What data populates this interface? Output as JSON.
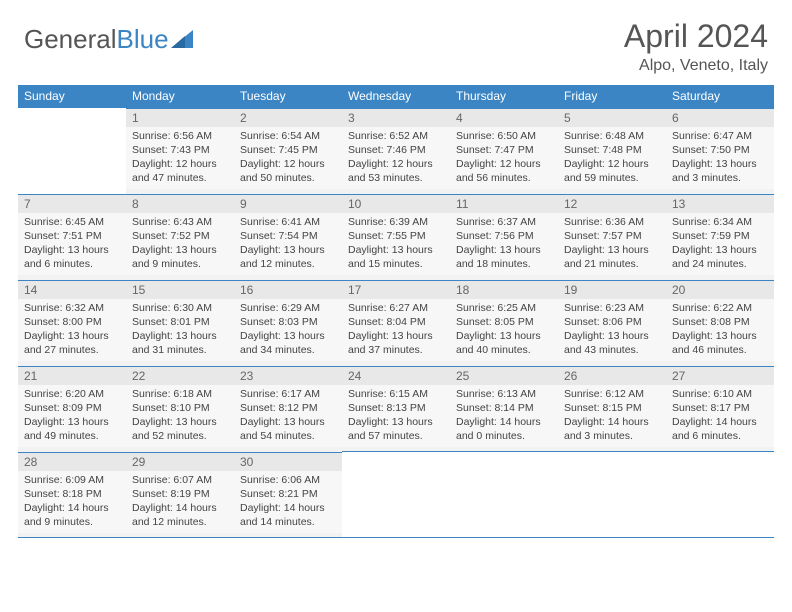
{
  "logo": {
    "text_gray": "General",
    "text_blue": "Blue"
  },
  "title": "April 2024",
  "location": "Alpo, Veneto, Italy",
  "day_headers": [
    "Sunday",
    "Monday",
    "Tuesday",
    "Wednesday",
    "Thursday",
    "Friday",
    "Saturday"
  ],
  "colors": {
    "header_bg": "#3b85c4",
    "header_text": "#ffffff",
    "cell_bg": "#f7f7f7",
    "daynum_bg": "#e8e8e8",
    "text": "#444444",
    "title_text": "#555555"
  },
  "weeks": [
    [
      null,
      {
        "n": "1",
        "sr": "Sunrise: 6:56 AM",
        "ss": "Sunset: 7:43 PM",
        "d1": "Daylight: 12 hours",
        "d2": "and 47 minutes."
      },
      {
        "n": "2",
        "sr": "Sunrise: 6:54 AM",
        "ss": "Sunset: 7:45 PM",
        "d1": "Daylight: 12 hours",
        "d2": "and 50 minutes."
      },
      {
        "n": "3",
        "sr": "Sunrise: 6:52 AM",
        "ss": "Sunset: 7:46 PM",
        "d1": "Daylight: 12 hours",
        "d2": "and 53 minutes."
      },
      {
        "n": "4",
        "sr": "Sunrise: 6:50 AM",
        "ss": "Sunset: 7:47 PM",
        "d1": "Daylight: 12 hours",
        "d2": "and 56 minutes."
      },
      {
        "n": "5",
        "sr": "Sunrise: 6:48 AM",
        "ss": "Sunset: 7:48 PM",
        "d1": "Daylight: 12 hours",
        "d2": "and 59 minutes."
      },
      {
        "n": "6",
        "sr": "Sunrise: 6:47 AM",
        "ss": "Sunset: 7:50 PM",
        "d1": "Daylight: 13 hours",
        "d2": "and 3 minutes."
      }
    ],
    [
      {
        "n": "7",
        "sr": "Sunrise: 6:45 AM",
        "ss": "Sunset: 7:51 PM",
        "d1": "Daylight: 13 hours",
        "d2": "and 6 minutes."
      },
      {
        "n": "8",
        "sr": "Sunrise: 6:43 AM",
        "ss": "Sunset: 7:52 PM",
        "d1": "Daylight: 13 hours",
        "d2": "and 9 minutes."
      },
      {
        "n": "9",
        "sr": "Sunrise: 6:41 AM",
        "ss": "Sunset: 7:54 PM",
        "d1": "Daylight: 13 hours",
        "d2": "and 12 minutes."
      },
      {
        "n": "10",
        "sr": "Sunrise: 6:39 AM",
        "ss": "Sunset: 7:55 PM",
        "d1": "Daylight: 13 hours",
        "d2": "and 15 minutes."
      },
      {
        "n": "11",
        "sr": "Sunrise: 6:37 AM",
        "ss": "Sunset: 7:56 PM",
        "d1": "Daylight: 13 hours",
        "d2": "and 18 minutes."
      },
      {
        "n": "12",
        "sr": "Sunrise: 6:36 AM",
        "ss": "Sunset: 7:57 PM",
        "d1": "Daylight: 13 hours",
        "d2": "and 21 minutes."
      },
      {
        "n": "13",
        "sr": "Sunrise: 6:34 AM",
        "ss": "Sunset: 7:59 PM",
        "d1": "Daylight: 13 hours",
        "d2": "and 24 minutes."
      }
    ],
    [
      {
        "n": "14",
        "sr": "Sunrise: 6:32 AM",
        "ss": "Sunset: 8:00 PM",
        "d1": "Daylight: 13 hours",
        "d2": "and 27 minutes."
      },
      {
        "n": "15",
        "sr": "Sunrise: 6:30 AM",
        "ss": "Sunset: 8:01 PM",
        "d1": "Daylight: 13 hours",
        "d2": "and 31 minutes."
      },
      {
        "n": "16",
        "sr": "Sunrise: 6:29 AM",
        "ss": "Sunset: 8:03 PM",
        "d1": "Daylight: 13 hours",
        "d2": "and 34 minutes."
      },
      {
        "n": "17",
        "sr": "Sunrise: 6:27 AM",
        "ss": "Sunset: 8:04 PM",
        "d1": "Daylight: 13 hours",
        "d2": "and 37 minutes."
      },
      {
        "n": "18",
        "sr": "Sunrise: 6:25 AM",
        "ss": "Sunset: 8:05 PM",
        "d1": "Daylight: 13 hours",
        "d2": "and 40 minutes."
      },
      {
        "n": "19",
        "sr": "Sunrise: 6:23 AM",
        "ss": "Sunset: 8:06 PM",
        "d1": "Daylight: 13 hours",
        "d2": "and 43 minutes."
      },
      {
        "n": "20",
        "sr": "Sunrise: 6:22 AM",
        "ss": "Sunset: 8:08 PM",
        "d1": "Daylight: 13 hours",
        "d2": "and 46 minutes."
      }
    ],
    [
      {
        "n": "21",
        "sr": "Sunrise: 6:20 AM",
        "ss": "Sunset: 8:09 PM",
        "d1": "Daylight: 13 hours",
        "d2": "and 49 minutes."
      },
      {
        "n": "22",
        "sr": "Sunrise: 6:18 AM",
        "ss": "Sunset: 8:10 PM",
        "d1": "Daylight: 13 hours",
        "d2": "and 52 minutes."
      },
      {
        "n": "23",
        "sr": "Sunrise: 6:17 AM",
        "ss": "Sunset: 8:12 PM",
        "d1": "Daylight: 13 hours",
        "d2": "and 54 minutes."
      },
      {
        "n": "24",
        "sr": "Sunrise: 6:15 AM",
        "ss": "Sunset: 8:13 PM",
        "d1": "Daylight: 13 hours",
        "d2": "and 57 minutes."
      },
      {
        "n": "25",
        "sr": "Sunrise: 6:13 AM",
        "ss": "Sunset: 8:14 PM",
        "d1": "Daylight: 14 hours",
        "d2": "and 0 minutes."
      },
      {
        "n": "26",
        "sr": "Sunrise: 6:12 AM",
        "ss": "Sunset: 8:15 PM",
        "d1": "Daylight: 14 hours",
        "d2": "and 3 minutes."
      },
      {
        "n": "27",
        "sr": "Sunrise: 6:10 AM",
        "ss": "Sunset: 8:17 PM",
        "d1": "Daylight: 14 hours",
        "d2": "and 6 minutes."
      }
    ],
    [
      {
        "n": "28",
        "sr": "Sunrise: 6:09 AM",
        "ss": "Sunset: 8:18 PM",
        "d1": "Daylight: 14 hours",
        "d2": "and 9 minutes."
      },
      {
        "n": "29",
        "sr": "Sunrise: 6:07 AM",
        "ss": "Sunset: 8:19 PM",
        "d1": "Daylight: 14 hours",
        "d2": "and 12 minutes."
      },
      {
        "n": "30",
        "sr": "Sunrise: 6:06 AM",
        "ss": "Sunset: 8:21 PM",
        "d1": "Daylight: 14 hours",
        "d2": "and 14 minutes."
      },
      null,
      null,
      null,
      null
    ]
  ]
}
